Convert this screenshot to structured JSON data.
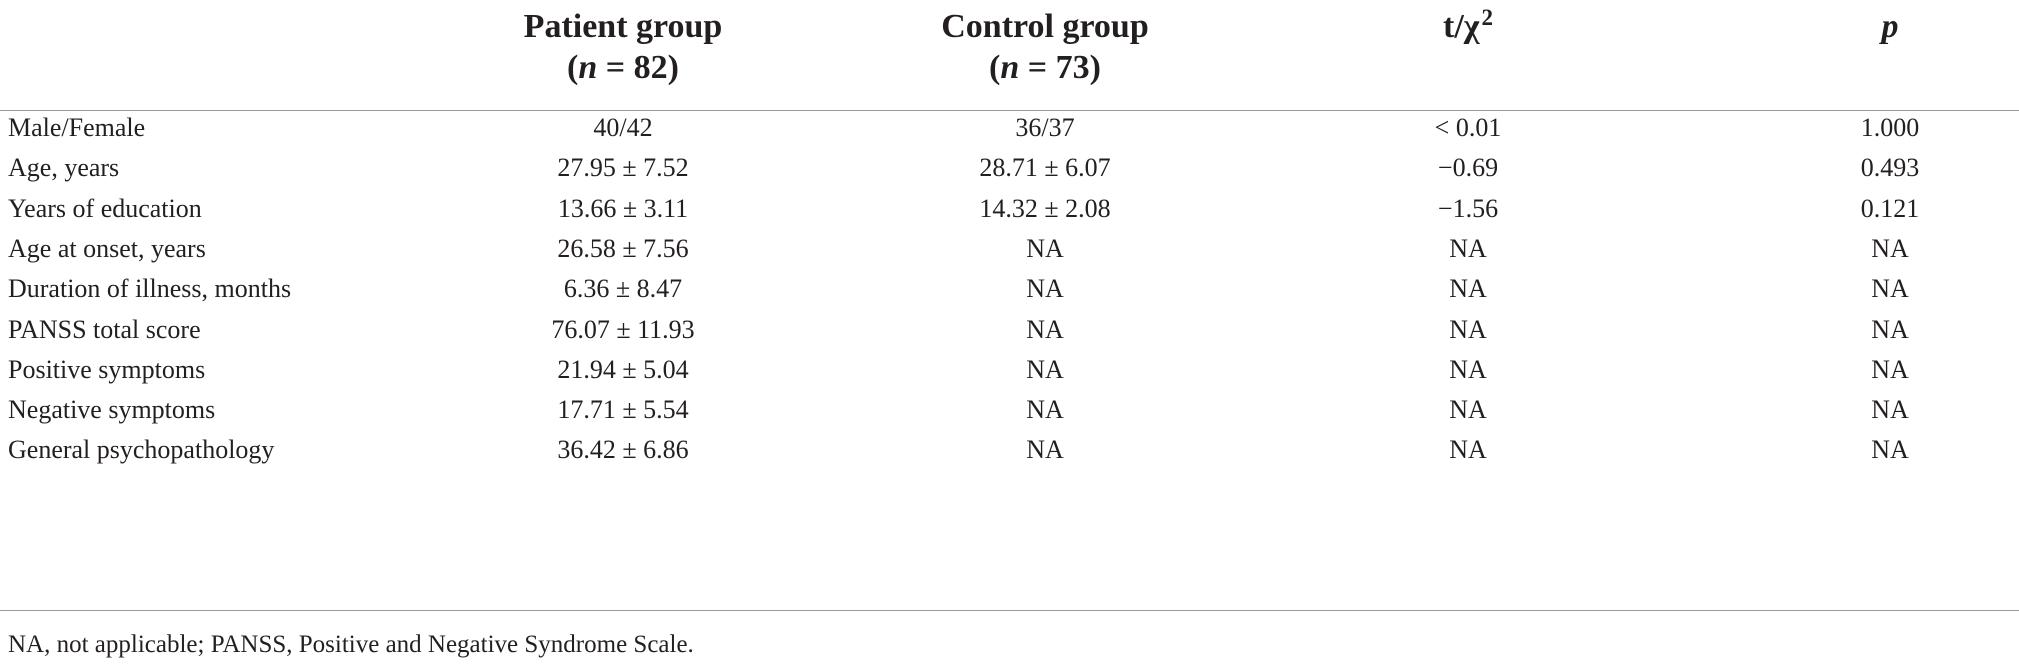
{
  "headers": {
    "patient_title": "Patient group",
    "patient_n_var": "n",
    "patient_n_val": " = 82",
    "control_title": "Control group",
    "control_n_var": "n",
    "control_n_val": " = 73",
    "stat_base": "t/χ",
    "stat_sup": "2",
    "p_label": "p"
  },
  "rows": [
    {
      "label": "Male/Female",
      "patient": "40/42",
      "control": "36/37",
      "stat": "< 0.01",
      "p": "1.000"
    },
    {
      "label": "Age, years",
      "patient": "27.95 ± 7.52",
      "control": "28.71 ± 6.07",
      "stat": "−0.69",
      "p": "0.493"
    },
    {
      "label": "Years of education",
      "patient": "13.66 ± 3.11",
      "control": "14.32 ± 2.08",
      "stat": "−1.56",
      "p": "0.121"
    },
    {
      "label": "Age at onset, years",
      "patient": "26.58 ± 7.56",
      "control": "NA",
      "stat": "NA",
      "p": "NA"
    },
    {
      "label": "Duration of illness, months",
      "patient": "6.36 ± 8.47",
      "control": "NA",
      "stat": "NA",
      "p": "NA"
    },
    {
      "label": "PANSS total score",
      "patient": "76.07 ± 11.93",
      "control": "NA",
      "stat": "NA",
      "p": "NA"
    },
    {
      "label": "Positive symptoms",
      "patient": "21.94 ± 5.04",
      "control": "NA",
      "stat": "NA",
      "p": "NA"
    },
    {
      "label": "Negative symptoms",
      "patient": "17.71 ± 5.54",
      "control": "NA",
      "stat": "NA",
      "p": "NA"
    },
    {
      "label": "General psychopathology",
      "patient": "36.42 ± 6.86",
      "control": "NA",
      "stat": "NA",
      "p": "NA"
    }
  ],
  "footnote": "NA, not applicable; PANSS, Positive and Negative Syndrome Scale."
}
